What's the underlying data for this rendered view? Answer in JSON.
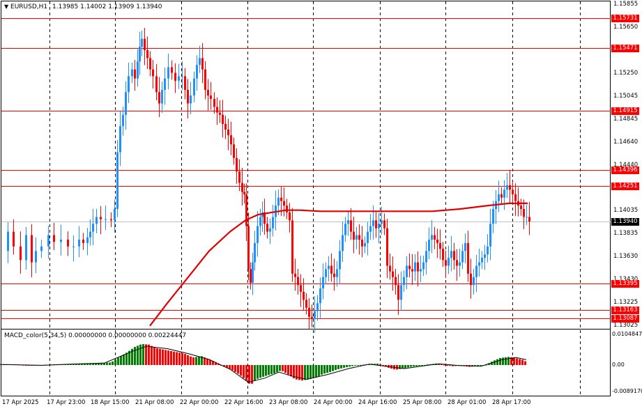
{
  "symbol": {
    "header_text": "EURUSD,H1",
    "ohlc_text": "1.13985 1.14002 1.13909 1.13940"
  },
  "colors": {
    "bull": "#1e90ff",
    "bear": "#ff0000",
    "ma": "#e00000",
    "level": "#ff0000",
    "macd_up": "#008000",
    "macd_down": "#ff0000",
    "signal": "#000000",
    "grid": "#000000"
  },
  "price_axis": {
    "ticks": [
      "1.15855",
      "1.15650",
      "1.15250",
      "1.15045",
      "1.14845",
      "1.14640",
      "1.14440",
      "1.14035",
      "1.13835",
      "1.13630",
      "1.13430",
      "1.13225",
      "1.13025"
    ],
    "tick_values": [
      1.15855,
      1.1565,
      1.1525,
      1.15045,
      1.14845,
      1.1464,
      1.1444,
      1.14035,
      1.13835,
      1.1363,
      1.1343,
      1.13225,
      1.13025
    ]
  },
  "levels": {
    "labels": [
      "1.15731",
      "1.15471",
      "1.14915",
      "1.14396",
      "1.14251",
      "1.13395",
      "1.13163",
      "1.13087"
    ],
    "values": [
      1.15731,
      1.15471,
      1.14915,
      1.14396,
      1.14251,
      1.13395,
      1.13163,
      1.13087
    ]
  },
  "current_price": {
    "label": "1.13940",
    "value": 1.1394
  },
  "macd": {
    "header": "MACD_color(5,34,5) 0.00000000 0.00000000 0.00224447",
    "ticks": [
      "0.0104847",
      "0.00",
      "-0.0089170"
    ],
    "tick_values": [
      0.0104847,
      0,
      -0.008917
    ]
  },
  "time_axis": {
    "labels": [
      "17 Apr 2025",
      "17 Apr 23:00",
      "18 Apr 15:00",
      "21 Apr 08:00",
      "22 Apr 00:00",
      "22 Apr 16:00",
      "23 Apr 08:00",
      "24 Apr 00:00",
      "24 Apr 16:00",
      "25 Apr 08:00",
      "28 Apr 01:00",
      "28 Apr 17:00"
    ]
  },
  "chart_data": {
    "type": "candlestick",
    "symbol": "EURUSD",
    "timeframe": "H1",
    "close_path": [
      [
        0,
        1.1368
      ],
      [
        10,
        1.1385
      ],
      [
        18,
        1.1372
      ],
      [
        28,
        1.136
      ],
      [
        36,
        1.1382
      ],
      [
        44,
        1.1358
      ],
      [
        50,
        1.1368
      ],
      [
        58,
        1.1372
      ],
      [
        68,
        1.1382
      ],
      [
        76,
        1.1376
      ],
      [
        86,
        1.1378
      ],
      [
        96,
        1.1372
      ],
      [
        104,
        1.1372
      ],
      [
        112,
        1.1378
      ],
      [
        118,
        1.1375
      ],
      [
        124,
        1.138
      ],
      [
        128,
        1.1385
      ],
      [
        132,
        1.1392
      ],
      [
        137,
        1.1398
      ],
      [
        143,
        1.1396
      ],
      [
        150,
        1.1396
      ],
      [
        158,
        1.1395
      ],
      [
        163,
        1.1405
      ],
      [
        167,
        1.1455
      ],
      [
        171,
        1.1478
      ],
      [
        175,
        1.1488
      ],
      [
        179,
        1.1508
      ],
      [
        183,
        1.1522
      ],
      [
        188,
        1.1528
      ],
      [
        192,
        1.152
      ],
      [
        196,
        1.1535
      ],
      [
        199,
        1.1548
      ],
      [
        202,
        1.1555
      ],
      [
        206,
        1.1545
      ],
      [
        210,
        1.1538
      ],
      [
        214,
        1.1528
      ],
      [
        218,
        1.1522
      ],
      [
        223,
        1.1508
      ],
      [
        227,
        1.1498
      ],
      [
        231,
        1.151
      ],
      [
        235,
        1.152
      ],
      [
        240,
        1.153
      ],
      [
        245,
        1.1525
      ],
      [
        250,
        1.1518
      ],
      [
        255,
        1.1522
      ],
      [
        260,
        1.1522
      ],
      [
        264,
        1.151
      ],
      [
        268,
        1.1498
      ],
      [
        272,
        1.1505
      ],
      [
        277,
        1.152
      ],
      [
        281,
        1.1532
      ],
      [
        285,
        1.1538
      ],
      [
        289,
        1.1528
      ],
      [
        293,
        1.151
      ],
      [
        297,
        1.1505
      ],
      [
        301,
        1.1502
      ],
      [
        306,
        1.1495
      ],
      [
        310,
        1.149
      ],
      [
        314,
        1.1488
      ],
      [
        318,
        1.148
      ],
      [
        322,
        1.1475
      ],
      [
        326,
        1.147
      ],
      [
        330,
        1.1462
      ],
      [
        334,
        1.145
      ],
      [
        338,
        1.1438
      ],
      [
        342,
        1.1428
      ],
      [
        346,
        1.142
      ],
      [
        349,
        1.1418
      ],
      [
        352,
        1.139
      ],
      [
        355,
        1.1352
      ],
      [
        358,
        1.134
      ],
      [
        361,
        1.1358
      ],
      [
        364,
        1.1375
      ],
      [
        368,
        1.139
      ],
      [
        372,
        1.1398
      ],
      [
        375,
        1.1402
      ],
      [
        378,
        1.1392
      ],
      [
        382,
        1.1385
      ],
      [
        386,
        1.1388
      ],
      [
        390,
        1.1398
      ],
      [
        394,
        1.1408
      ],
      [
        398,
        1.1415
      ],
      [
        402,
        1.1412
      ],
      [
        406,
        1.1408
      ],
      [
        410,
        1.1402
      ],
      [
        414,
        1.1395
      ],
      [
        418,
        1.1348
      ],
      [
        422,
        1.1345
      ],
      [
        426,
        1.1338
      ],
      [
        430,
        1.1332
      ],
      [
        434,
        1.1325
      ],
      [
        438,
        1.1318
      ],
      [
        442,
        1.131
      ],
      [
        446,
        1.1308
      ],
      [
        450,
        1.1315
      ],
      [
        454,
        1.1322
      ],
      [
        458,
        1.1335
      ],
      [
        462,
        1.1345
      ],
      [
        466,
        1.1352
      ],
      [
        470,
        1.1355
      ],
      [
        474,
        1.1348
      ],
      [
        478,
        1.1345
      ],
      [
        482,
        1.1352
      ],
      [
        486,
        1.1368
      ],
      [
        490,
        1.1382
      ],
      [
        494,
        1.1392
      ],
      [
        498,
        1.1395
      ],
      [
        502,
        1.1385
      ],
      [
        506,
        1.1378
      ],
      [
        510,
        1.1382
      ],
      [
        514,
        1.1378
      ],
      [
        518,
        1.1372
      ],
      [
        522,
        1.1375
      ],
      [
        526,
        1.1385
      ],
      [
        530,
        1.139
      ],
      [
        534,
        1.1395
      ],
      [
        538,
        1.1388
      ],
      [
        542,
        1.1392
      ],
      [
        546,
        1.1395
      ],
      [
        550,
        1.1388
      ],
      [
        554,
        1.1355
      ],
      [
        558,
        1.135
      ],
      [
        562,
        1.1345
      ],
      [
        566,
        1.1338
      ],
      [
        570,
        1.1325
      ],
      [
        574,
        1.1338
      ],
      [
        578,
        1.1345
      ],
      [
        582,
        1.1355
      ],
      [
        586,
        1.1352
      ],
      [
        590,
        1.135
      ],
      [
        594,
        1.1358
      ],
      [
        598,
        1.135
      ],
      [
        602,
        1.1352
      ],
      [
        606,
        1.1358
      ],
      [
        610,
        1.1368
      ],
      [
        614,
        1.1378
      ],
      [
        618,
        1.1382
      ],
      [
        622,
        1.1378
      ],
      [
        626,
        1.1375
      ],
      [
        630,
        1.137
      ],
      [
        634,
        1.136
      ],
      [
        638,
        1.1355
      ],
      [
        642,
        1.1362
      ],
      [
        646,
        1.1368
      ],
      [
        650,
        1.136
      ],
      [
        654,
        1.1355
      ],
      [
        658,
        1.1358
      ],
      [
        662,
        1.1368
      ],
      [
        666,
        1.1375
      ],
      [
        670,
        1.1348
      ],
      [
        674,
        1.1338
      ],
      [
        678,
        1.1345
      ],
      [
        682,
        1.1355
      ],
      [
        686,
        1.1358
      ],
      [
        690,
        1.1362
      ],
      [
        694,
        1.1365
      ],
      [
        698,
        1.1372
      ],
      [
        702,
        1.1392
      ],
      [
        706,
        1.1405
      ],
      [
        710,
        1.1412
      ],
      [
        714,
        1.1418
      ],
      [
        718,
        1.1415
      ],
      [
        722,
        1.1422
      ],
      [
        726,
        1.1426
      ],
      [
        730,
        1.1422
      ],
      [
        734,
        1.1418
      ],
      [
        738,
        1.1412
      ],
      [
        742,
        1.1408
      ],
      [
        746,
        1.1405
      ],
      [
        750,
        1.1398
      ],
      [
        754,
        1.1398
      ],
      [
        758,
        1.1394
      ]
    ],
    "ma_path": [
      [
        215,
        1.1302
      ],
      [
        240,
        1.1322
      ],
      [
        270,
        1.1345
      ],
      [
        300,
        1.1368
      ],
      [
        330,
        1.1385
      ],
      [
        352,
        1.1395
      ],
      [
        370,
        1.14
      ],
      [
        390,
        1.1402
      ],
      [
        410,
        1.1404
      ],
      [
        430,
        1.1404
      ],
      [
        460,
        1.1403
      ],
      [
        500,
        1.1403
      ],
      [
        540,
        1.1403
      ],
      [
        580,
        1.1403
      ],
      [
        620,
        1.1403
      ],
      [
        660,
        1.1405
      ],
      [
        700,
        1.1408
      ],
      [
        730,
        1.141
      ],
      [
        757,
        1.141
      ]
    ],
    "macd_hist": [
      [
        5,
        0.0003
      ],
      [
        25,
        0.0002
      ],
      [
        45,
        -0.0002
      ],
      [
        60,
        0
      ],
      [
        80,
        0.0002
      ],
      [
        100,
        0.0003
      ],
      [
        120,
        0.0004
      ],
      [
        140,
        0.0006
      ],
      [
        158,
        0.0009
      ],
      [
        168,
        0.0025
      ],
      [
        180,
        0.0042
      ],
      [
        192,
        0.0062
      ],
      [
        202,
        0.0072
      ],
      [
        212,
        0.007
      ],
      [
        222,
        0.0058
      ],
      [
        235,
        0.0052
      ],
      [
        250,
        0.0045
      ],
      [
        262,
        0.004
      ],
      [
        275,
        0.0026
      ],
      [
        288,
        0.003
      ],
      [
        300,
        0.0018
      ],
      [
        312,
        0.0004
      ],
      [
        322,
        -0.0008
      ],
      [
        332,
        -0.0018
      ],
      [
        342,
        -0.0032
      ],
      [
        352,
        -0.0052
      ],
      [
        358,
        -0.0068
      ],
      [
        366,
        -0.0048
      ],
      [
        378,
        -0.0038
      ],
      [
        392,
        -0.0028
      ],
      [
        402,
        -0.0018
      ],
      [
        412,
        -0.0032
      ],
      [
        422,
        -0.0048
      ],
      [
        432,
        -0.0052
      ],
      [
        442,
        -0.0048
      ],
      [
        452,
        -0.0042
      ],
      [
        462,
        -0.003
      ],
      [
        472,
        -0.0024
      ],
      [
        482,
        -0.0015
      ],
      [
        494,
        -0.0008
      ],
      [
        506,
        -0.0003
      ],
      [
        518,
        0.0001
      ],
      [
        530,
        0.0004
      ],
      [
        542,
        0.0005
      ],
      [
        554,
        -0.0008
      ],
      [
        566,
        -0.0016
      ],
      [
        576,
        -0.0012
      ],
      [
        588,
        -0.0006
      ],
      [
        600,
        -0.0003
      ],
      [
        612,
        0.0002
      ],
      [
        624,
        0.0005
      ],
      [
        636,
        0.0001
      ],
      [
        648,
        -0.0004
      ],
      [
        660,
        -0.0002
      ],
      [
        672,
        -0.0006
      ],
      [
        684,
        -0.0004
      ],
      [
        696,
        0.0001
      ],
      [
        706,
        0.0014
      ],
      [
        716,
        0.0024
      ],
      [
        728,
        0.0028
      ],
      [
        738,
        0.0024
      ],
      [
        748,
        0.0018
      ],
      [
        752,
        0.0013
      ]
    ],
    "macd_signal": [
      [
        0,
        0.0002
      ],
      [
        60,
        -0.0001
      ],
      [
        100,
        0.0003
      ],
      [
        150,
        0.0007
      ],
      [
        190,
        0.0047
      ],
      [
        210,
        0.0064
      ],
      [
        240,
        0.0056
      ],
      [
        270,
        0.0039
      ],
      [
        300,
        0.0019
      ],
      [
        330,
        -0.0014
      ],
      [
        356,
        -0.0058
      ],
      [
        380,
        -0.0044
      ],
      [
        400,
        -0.0024
      ],
      [
        420,
        -0.0038
      ],
      [
        440,
        -0.0048
      ],
      [
        470,
        -0.0032
      ],
      [
        500,
        -0.0012
      ],
      [
        530,
        0.0003
      ],
      [
        560,
        -0.0006
      ],
      [
        580,
        -0.0012
      ],
      [
        610,
        -0.0002
      ],
      [
        630,
        0.0004
      ],
      [
        660,
        -0.0002
      ],
      [
        690,
        -0.0004
      ],
      [
        720,
        0.0018
      ],
      [
        740,
        0.0026
      ],
      [
        755,
        0.0018
      ]
    ]
  }
}
